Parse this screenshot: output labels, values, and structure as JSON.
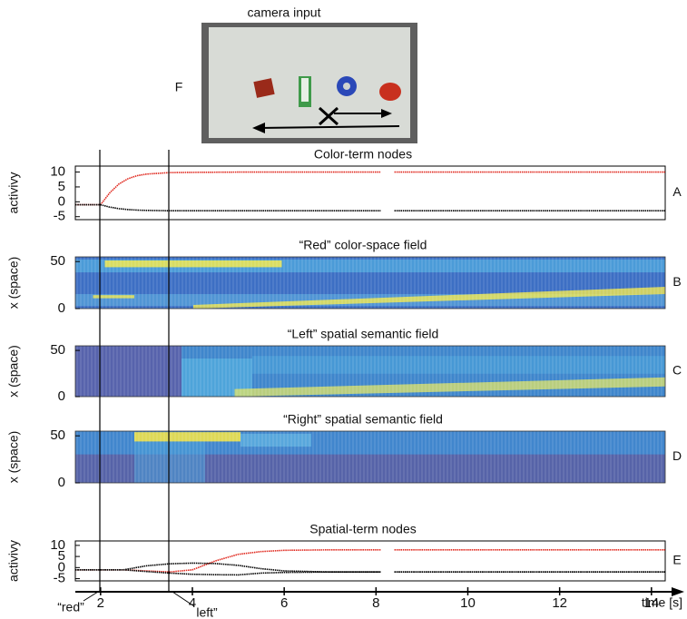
{
  "camera": {
    "title": "camera input",
    "label": "F"
  },
  "annotations": [
    "“red”",
    "left”"
  ],
  "chart_data": [
    {
      "type": "line",
      "title": "Color-term nodes",
      "ylabel": "activivy",
      "panel_label": "A",
      "xlim": [
        1.45,
        14.3
      ],
      "ylim": [
        -6,
        12
      ],
      "yticks": [
        -5,
        0,
        5,
        10
      ],
      "x": [
        1.45,
        2,
        2.2,
        2.4,
        2.6,
        2.8,
        3,
        3.5,
        4,
        5,
        6,
        7,
        8.1,
        8.25,
        8.4,
        10,
        12,
        14.3
      ],
      "series": [
        {
          "color": "#e0281e",
          "values": [
            -1,
            -1,
            3,
            6,
            7.8,
            8.8,
            9.3,
            9.8,
            9.9,
            10,
            10,
            10,
            10,
            null,
            10,
            10,
            10,
            10
          ]
        },
        {
          "color": "#000000",
          "values": [
            -1,
            -1,
            -1.8,
            -2.3,
            -2.6,
            -2.8,
            -2.9,
            -3,
            -3,
            -3,
            -3,
            -3,
            -3,
            null,
            -3,
            -3,
            -3,
            -3
          ]
        }
      ]
    },
    {
      "type": "heatmap",
      "title": "“Red” color-space field",
      "ylabel": "x (space)",
      "panel_label": "B",
      "ylim": [
        0,
        55
      ],
      "yticks": [
        0,
        50
      ]
    },
    {
      "type": "heatmap",
      "title": "“Left” spatial semantic field",
      "ylabel": "x (space)",
      "panel_label": "C",
      "ylim": [
        0,
        55
      ],
      "yticks": [
        0,
        50
      ]
    },
    {
      "type": "heatmap",
      "title": "“Right” spatial semantic field",
      "ylabel": "x (space)",
      "panel_label": "D",
      "ylim": [
        0,
        55
      ],
      "yticks": [
        0,
        50
      ]
    },
    {
      "type": "line",
      "title": "Spatial-term nodes",
      "ylabel": "activivy",
      "panel_label": "E",
      "xlim": [
        1.45,
        14.3
      ],
      "xticks": [
        2,
        4,
        6,
        8,
        10,
        12,
        14
      ],
      "xlabel": "time [s]",
      "ylim": [
        -6,
        12
      ],
      "yticks": [
        -5,
        0,
        5,
        10
      ],
      "x": [
        1.45,
        2,
        2.5,
        3,
        3.5,
        4,
        4.5,
        5,
        5.5,
        6,
        7,
        8.1,
        8.25,
        8.4,
        10,
        12,
        14.3
      ],
      "series": [
        {
          "color": "#e0281e",
          "values": [
            -1,
            -1,
            -1,
            -1.5,
            -2,
            -1,
            3,
            6,
            7.2,
            7.8,
            8,
            8,
            null,
            8,
            8,
            8,
            8
          ]
        },
        {
          "color": "#000000",
          "values": [
            -1,
            -1,
            -1,
            0.8,
            1.7,
            2,
            1.8,
            1,
            -0.5,
            -1.5,
            -2,
            -2,
            null,
            -2,
            -2,
            -2,
            -2
          ]
        },
        {
          "color": "#000000",
          "values": [
            -1,
            -1,
            -1,
            -1.8,
            -2.5,
            -3,
            -3.2,
            -3.3,
            -2.5,
            -2.2,
            -2,
            -2,
            null,
            -2,
            -2,
            -2,
            -2
          ]
        }
      ]
    }
  ]
}
